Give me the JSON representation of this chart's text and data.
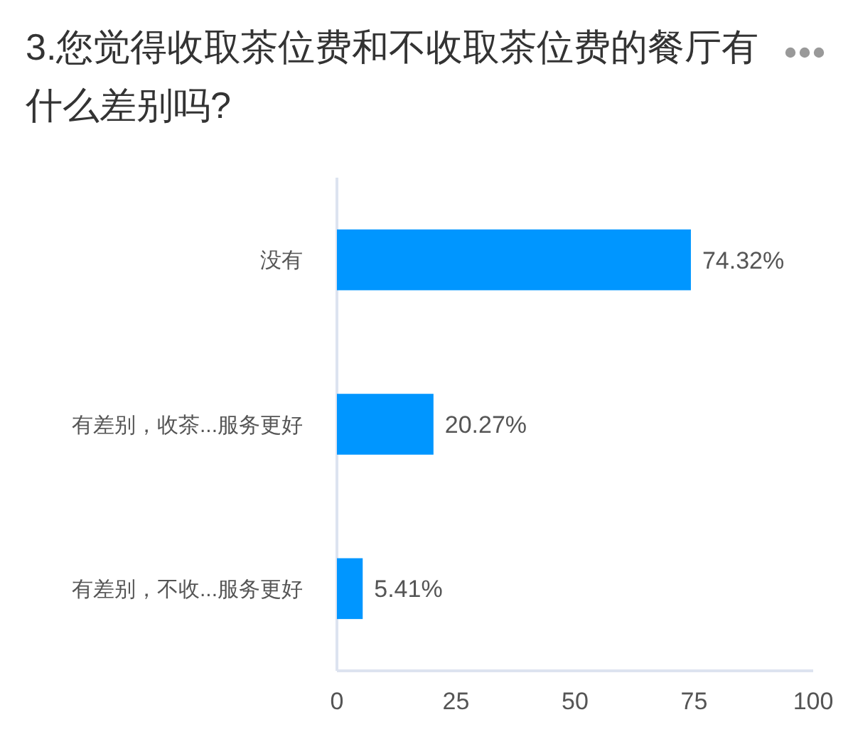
{
  "chart_data": {
    "type": "bar",
    "orientation": "horizontal",
    "title": "3.您觉得收取茶位费和不收取茶位费的餐厅有什么差别吗?",
    "categories": [
      "没有",
      "有差别，收茶...服务更好",
      "有差别，不收...服务更好"
    ],
    "values": [
      74.32,
      20.27,
      5.41
    ],
    "color": "#0096ff",
    "value_labels": [
      "74.32%",
      "20.27%",
      "5.41%"
    ],
    "xlim": [
      0,
      100
    ],
    "xticks": [
      0,
      25,
      50,
      75,
      100
    ],
    "grid": false
  }
}
